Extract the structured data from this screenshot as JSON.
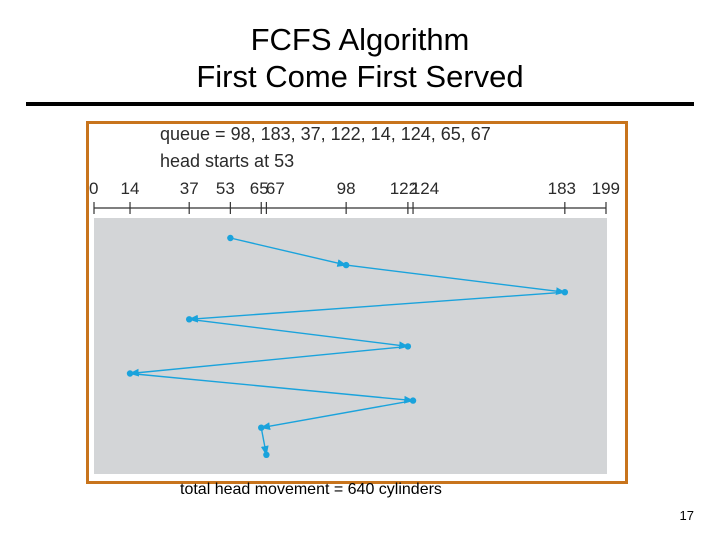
{
  "title_line1": "FCFS Algorithm",
  "title_line2": "First Come First Served",
  "chart_data": {
    "type": "line",
    "queue_text": "queue = 98, 183, 37, 122, 14, 124, 65, 67",
    "head_text": "head starts at 53",
    "axis_ticks": [
      "0",
      "14",
      "37",
      "53",
      "65",
      "67",
      "98",
      "122",
      "124",
      "183",
      "199"
    ],
    "tick_values": [
      0,
      14,
      37,
      53,
      65,
      67,
      98,
      122,
      124,
      183,
      199
    ],
    "xlim": [
      0,
      199
    ],
    "sequence": [
      53,
      98,
      183,
      37,
      122,
      14,
      124,
      65,
      67
    ],
    "colors": {
      "path": "#1aa3dc",
      "plot_bg": "#d3d5d7",
      "axis": "#333333",
      "frame": "#c8741c"
    }
  },
  "caption": "total head movement =  640 cylinders",
  "page_number": "17"
}
